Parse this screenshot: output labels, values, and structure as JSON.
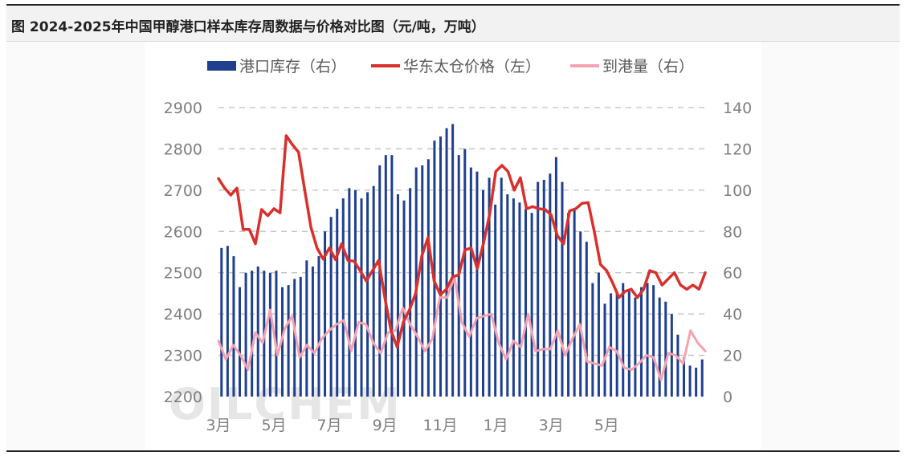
{
  "figure": {
    "title": "图  2024-2025年中国甲醇港口样本库存周数据与价格对比图（元/吨，万吨）",
    "watermark": "OILCHEM"
  },
  "chart_data": {
    "type": "bar+line",
    "title": "图  2024-2025年中国甲醇港口样本库存周数据与价格对比图（元/吨，万吨）",
    "grid": "horizontal dashed",
    "legend_position": "top",
    "left_axis": {
      "ylim": [
        2200,
        2900
      ],
      "ticks": [
        "2900",
        "2800",
        "2700",
        "2600",
        "2500",
        "2400",
        "2300",
        "2200"
      ]
    },
    "right_axis": {
      "ylim": [
        0,
        140
      ],
      "ticks": [
        "140",
        "120",
        "100",
        "80",
        "60",
        "40",
        "20",
        "0"
      ]
    },
    "x_tick_labels": [
      {
        "label": "3月",
        "index": 0
      },
      {
        "label": "5月",
        "index": 9
      },
      {
        "label": "7月",
        "index": 18
      },
      {
        "label": "9月",
        "index": 27
      },
      {
        "label": "11月",
        "index": 36
      },
      {
        "label": "1月",
        "index": 45
      },
      {
        "label": "3月",
        "index": 54
      },
      {
        "label": "5月",
        "index": 63
      }
    ],
    "series": [
      {
        "name": "港口库存（右）",
        "type": "bar",
        "axis": "right",
        "color": "#1f3f8f",
        "values": [
          72,
          73,
          68,
          53,
          60,
          61,
          63,
          61,
          60,
          61,
          53,
          54,
          57,
          58,
          66,
          63,
          68,
          80,
          87,
          91,
          96,
          101,
          100,
          96,
          99,
          102,
          112,
          117,
          117,
          98,
          95,
          101,
          111,
          112,
          115,
          124,
          126,
          130,
          132,
          117,
          120,
          111,
          109,
          100,
          106,
          93,
          106,
          98,
          96,
          94,
          91,
          89,
          104,
          105,
          108,
          116,
          104,
          89,
          91,
          80,
          75,
          55,
          60,
          45,
          50,
          51,
          55,
          51,
          48,
          53,
          55,
          54,
          48,
          46,
          40,
          30,
          19,
          15,
          14,
          18
        ]
      },
      {
        "name": "华东太仓价格（左）",
        "type": "line",
        "axis": "left",
        "color": "#d9302c",
        "values": [
          2728,
          2705,
          2688,
          2705,
          2605,
          2605,
          2570,
          2653,
          2638,
          2655,
          2645,
          2832,
          2810,
          2792,
          2700,
          2610,
          2560,
          2533,
          2560,
          2532,
          2570,
          2530,
          2528,
          2505,
          2480,
          2505,
          2530,
          2440,
          2360,
          2320,
          2380,
          2410,
          2450,
          2540,
          2585,
          2480,
          2447,
          2460,
          2490,
          2495,
          2555,
          2560,
          2510,
          2570,
          2640,
          2745,
          2760,
          2745,
          2700,
          2730,
          2655,
          2660,
          2655,
          2653,
          2640,
          2590,
          2570,
          2650,
          2655,
          2668,
          2670,
          2600,
          2520,
          2505,
          2475,
          2440,
          2455,
          2460,
          2440,
          2460,
          2505,
          2500,
          2470,
          2485,
          2500,
          2470,
          2460,
          2470,
          2460,
          2500
        ]
      },
      {
        "name": "到港量（右）",
        "type": "line",
        "axis": "right",
        "color": "#f4a3b1",
        "values": [
          27,
          18,
          25,
          20,
          13,
          31,
          26,
          42,
          20,
          33,
          39,
          19,
          25,
          21,
          28,
          32,
          35,
          37,
          22,
          36,
          35,
          26,
          21,
          31,
          32,
          43,
          35,
          29,
          22,
          28,
          48,
          48,
          58,
          36,
          29,
          38,
          39,
          40,
          26,
          18,
          27,
          24,
          40,
          22,
          23,
          23,
          32,
          20,
          28,
          35,
          17,
          16,
          15,
          24,
          22,
          14,
          13,
          16,
          20,
          19,
          8,
          21,
          20,
          16,
          32,
          26,
          22
        ]
      }
    ]
  }
}
